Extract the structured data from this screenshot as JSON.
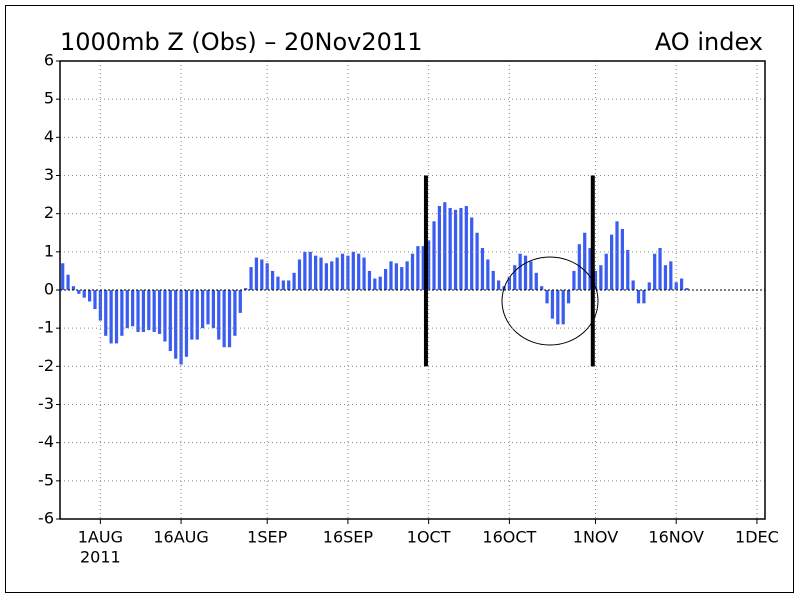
{
  "chart_data": {
    "type": "bar",
    "title": "1000mb Z (Obs) – 20Nov2011",
    "subtitle": "AO index",
    "x_sublabel": "2011",
    "color": "#3a5cf0",
    "grid": true,
    "ylim": [
      -6,
      6
    ],
    "yticks": [
      -6,
      -5,
      -4,
      -3,
      -2,
      -1,
      0,
      1,
      2,
      3,
      4,
      5,
      6
    ],
    "categories": [
      null,
      null,
      null,
      null,
      null,
      null,
      null,
      "1AUG",
      null,
      null,
      null,
      null,
      null,
      null,
      null,
      null,
      null,
      null,
      null,
      null,
      null,
      null,
      "16AUG",
      null,
      null,
      null,
      null,
      null,
      null,
      null,
      null,
      null,
      null,
      null,
      null,
      null,
      null,
      null,
      "1SEP",
      null,
      null,
      null,
      null,
      null,
      null,
      null,
      null,
      null,
      null,
      null,
      null,
      null,
      null,
      "16SEP",
      null,
      null,
      null,
      null,
      null,
      null,
      null,
      null,
      null,
      null,
      null,
      null,
      null,
      null,
      "1OCT",
      null,
      null,
      null,
      null,
      null,
      null,
      null,
      null,
      null,
      null,
      null,
      null,
      null,
      null,
      "16OCT",
      null,
      null,
      null,
      null,
      null,
      null,
      null,
      null,
      null,
      null,
      null,
      null,
      null,
      null,
      null,
      "1NOV",
      null,
      null,
      null,
      null,
      null,
      null,
      null,
      null,
      null,
      null,
      null,
      null,
      null,
      null,
      "16NOV",
      null,
      null,
      null,
      null,
      null,
      null,
      null,
      null,
      null,
      null,
      null,
      null,
      null,
      null,
      "1DEC",
      null
    ],
    "values": [
      0.7,
      0.4,
      0.1,
      -0.1,
      -0.2,
      -0.3,
      -0.5,
      -0.8,
      -1.2,
      -1.4,
      -1.4,
      -1.2,
      -1.0,
      -0.95,
      -1.1,
      -1.1,
      -1.05,
      -1.1,
      -1.15,
      -1.35,
      -1.6,
      -1.8,
      -1.95,
      -1.75,
      -1.3,
      -1.3,
      -1.0,
      -0.9,
      -1.0,
      -1.3,
      -1.5,
      -1.5,
      -1.2,
      -0.6,
      0.05,
      0.6,
      0.85,
      0.8,
      0.7,
      0.5,
      0.35,
      0.25,
      0.25,
      0.45,
      0.8,
      1.0,
      1.0,
      0.9,
      0.85,
      0.7,
      0.75,
      0.85,
      0.95,
      0.9,
      1.0,
      0.95,
      0.85,
      0.5,
      0.3,
      0.35,
      0.55,
      0.75,
      0.7,
      0.6,
      0.75,
      0.95,
      1.15,
      1.15,
      1.3,
      1.8,
      2.2,
      2.3,
      2.15,
      2.1,
      2.15,
      2.2,
      1.9,
      1.5,
      1.1,
      0.8,
      0.5,
      0.25,
      0.1,
      0.35,
      0.65,
      0.95,
      0.9,
      0.75,
      0.45,
      0.1,
      -0.35,
      -0.75,
      -0.9,
      -0.9,
      -0.35,
      0.5,
      1.2,
      1.5,
      1.1,
      0.5,
      0.65,
      0.95,
      1.45,
      1.8,
      1.6,
      1.05,
      0.25,
      -0.35,
      -0.35,
      0.2,
      0.95,
      1.1,
      0.65,
      0.75,
      0.2,
      0.3,
      0.05,
      null,
      null,
      null,
      null,
      null,
      null,
      null,
      null,
      null,
      null,
      null,
      null,
      null,
      null
    ],
    "reference_lines": [
      {
        "category": "1OCT",
        "ymin": -2,
        "ymax": 3
      },
      {
        "category": "1NOV",
        "ymin": -2,
        "ymax": 3
      }
    ]
  }
}
